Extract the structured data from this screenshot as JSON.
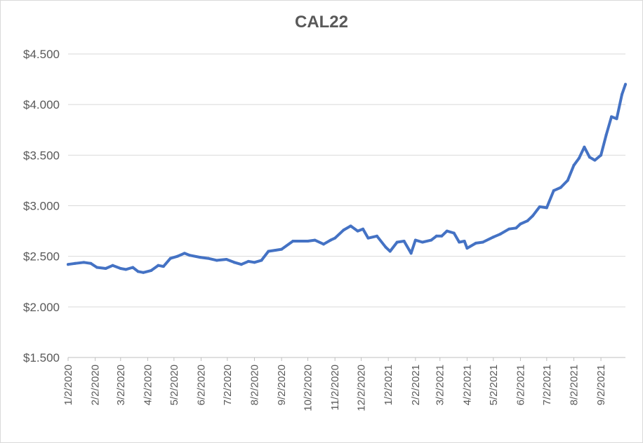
{
  "chart_data": {
    "type": "line",
    "title": "CAL22",
    "xlabel": "",
    "ylabel": "",
    "ylim": [
      1.5,
      4.5
    ],
    "y_ticks": [
      {
        "value": 4.5,
        "label": "$4.500"
      },
      {
        "value": 4.0,
        "label": "$4.000"
      },
      {
        "value": 3.5,
        "label": "$3.500"
      },
      {
        "value": 3.0,
        "label": "$3.000"
      },
      {
        "value": 2.5,
        "label": "$2.500"
      },
      {
        "value": 2.0,
        "label": "$2.000"
      },
      {
        "value": 1.5,
        "label": "$1.500"
      }
    ],
    "x_ticks": [
      "1/2/2020",
      "2/2/2020",
      "3/2/2020",
      "4/2/2020",
      "5/2/2020",
      "6/2/2020",
      "7/2/2020",
      "8/2/2020",
      "9/2/2020",
      "10/2/2020",
      "11/2/2020",
      "12/2/2020",
      "1/2/2021",
      "2/2/2021",
      "3/2/2021",
      "4/2/2021",
      "5/2/2021",
      "6/2/2021",
      "7/2/2021",
      "8/2/2021",
      "9/2/2021"
    ],
    "x_range": [
      "1/2/2020",
      "9/30/2021"
    ],
    "grid": "horizontal",
    "series_color": "#4472c4",
    "series": [
      {
        "x": [
          "1/2/2020",
          "1/10/2020",
          "1/20/2020",
          "1/28/2020",
          "2/4/2020",
          "2/14/2020",
          "2/22/2020",
          "3/2/2020",
          "3/8/2020",
          "3/16/2020",
          "3/22/2020",
          "3/28/2020",
          "4/6/2020",
          "4/14/2020",
          "4/20/2020",
          "4/28/2020",
          "5/6/2020",
          "5/14/2020",
          "5/20/2020",
          "6/1/2020",
          "6/10/2020",
          "6/20/2020",
          "7/1/2020",
          "7/10/2020",
          "7/18/2020",
          "7/26/2020",
          "8/2/2020",
          "8/10/2020",
          "8/18/2020",
          "8/26/2020",
          "9/2/2020",
          "9/15/2020",
          "10/2/2020",
          "10/10/2020",
          "10/20/2020",
          "10/28/2020",
          "11/2/2020",
          "11/12/2020",
          "11/20/2020",
          "11/28/2020",
          "12/4/2020",
          "12/10/2020",
          "12/20/2020",
          "12/30/2020",
          "1/4/2021",
          "1/12/2021",
          "1/20/2021",
          "1/28/2021",
          "2/2/2021",
          "2/10/2021",
          "2/20/2021",
          "2/26/2021",
          "3/4/2021",
          "3/10/2021",
          "3/18/2021",
          "3/24/2021",
          "3/30/2021",
          "4/2/2021",
          "4/12/2021",
          "4/20/2021",
          "5/2/2021",
          "5/10/2021",
          "5/20/2021",
          "5/28/2021",
          "6/2/2021",
          "6/10/2021",
          "6/16/2021",
          "6/24/2021",
          "7/2/2021",
          "7/10/2021",
          "7/18/2021",
          "7/26/2021",
          "8/2/2021",
          "8/8/2021",
          "8/14/2021",
          "8/20/2021",
          "8/26/2021",
          "9/2/2021",
          "9/8/2021",
          "9/14/2021",
          "9/20/2021",
          "9/26/2021",
          "9/30/2021"
        ],
        "values": [
          2.42,
          2.43,
          2.44,
          2.43,
          2.39,
          2.38,
          2.41,
          2.38,
          2.37,
          2.39,
          2.35,
          2.34,
          2.36,
          2.41,
          2.4,
          2.48,
          2.5,
          2.53,
          2.51,
          2.49,
          2.48,
          2.46,
          2.47,
          2.44,
          2.42,
          2.45,
          2.44,
          2.46,
          2.55,
          2.56,
          2.57,
          2.65,
          2.65,
          2.66,
          2.62,
          2.66,
          2.68,
          2.76,
          2.8,
          2.75,
          2.77,
          2.68,
          2.7,
          2.59,
          2.55,
          2.64,
          2.65,
          2.53,
          2.66,
          2.64,
          2.66,
          2.7,
          2.7,
          2.75,
          2.73,
          2.64,
          2.65,
          2.58,
          2.63,
          2.64,
          2.69,
          2.72,
          2.77,
          2.78,
          2.82,
          2.85,
          2.9,
          2.99,
          2.98,
          3.15,
          3.18,
          3.25,
          3.4,
          3.47,
          3.58,
          3.48,
          3.45,
          3.5,
          3.7,
          3.88,
          3.86,
          4.1,
          4.2
        ]
      }
    ]
  }
}
